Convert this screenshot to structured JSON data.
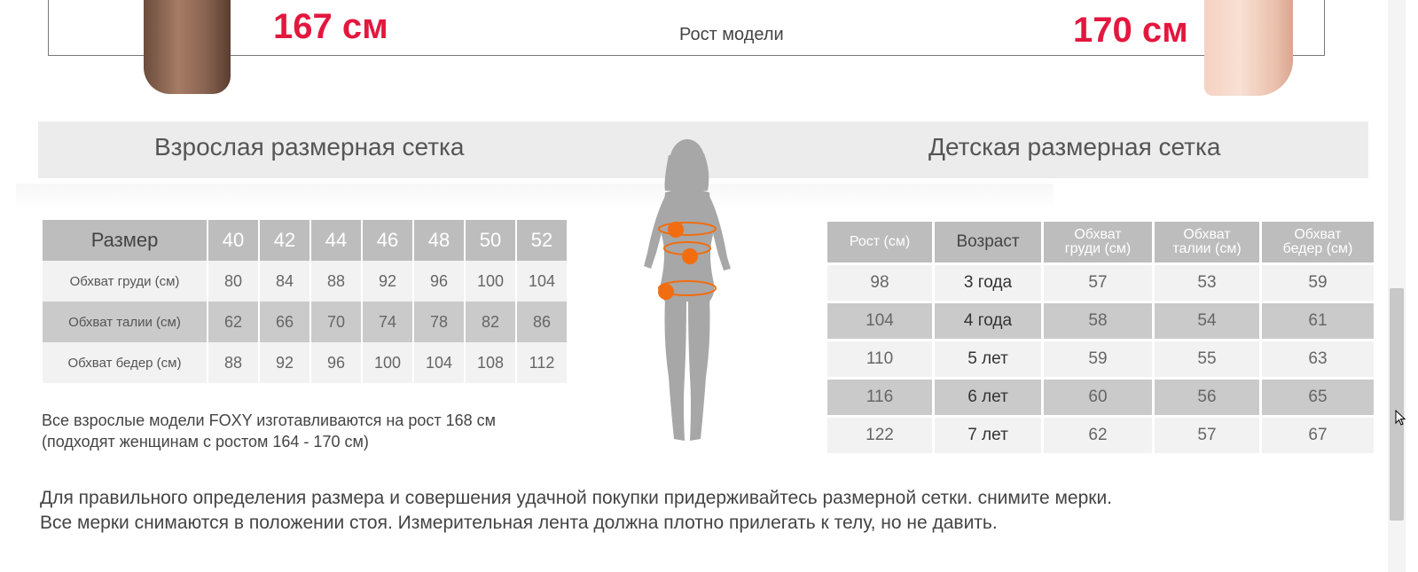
{
  "banner": {
    "height_left": "167 см",
    "model_height_label": "Рост модели",
    "height_right": "170 см"
  },
  "adult": {
    "title": "Взрослая размерная сетка",
    "header_label": "Размер",
    "sizes": [
      "40",
      "42",
      "44",
      "46",
      "48",
      "50",
      "52"
    ],
    "rows": [
      {
        "label": "Обхват груди (см)",
        "values": [
          "80",
          "84",
          "88",
          "92",
          "96",
          "100",
          "104"
        ]
      },
      {
        "label": "Обхват талии (см)",
        "values": [
          "62",
          "66",
          "70",
          "74",
          "78",
          "82",
          "86"
        ]
      },
      {
        "label": "Обхват бедер (см)",
        "values": [
          "88",
          "92",
          "96",
          "100",
          "104",
          "108",
          "112"
        ]
      }
    ],
    "note_line1": "Все взрослые модели FOXY изготавливаются на рост 168 см",
    "note_line2": "(подходят женщинам с ростом 164 - 170 см)"
  },
  "child": {
    "title": "Детская размерная сетка",
    "headers": {
      "height": "Рост (см)",
      "age": "Возраст",
      "chest_1": "Обхват",
      "chest_2": "груди (см)",
      "waist_1": "Обхват",
      "waist_2": "талии (см)",
      "hips_1": "Обхват",
      "hips_2": "бедер (см)"
    },
    "rows": [
      {
        "height": "98",
        "age": "3 года",
        "chest": "57",
        "waist": "53",
        "hips": "59"
      },
      {
        "height": "104",
        "age": "4 года",
        "chest": "58",
        "waist": "54",
        "hips": "61"
      },
      {
        "height": "110",
        "age": "5 лет",
        "chest": "59",
        "waist": "55",
        "hips": "63"
      },
      {
        "height": "116",
        "age": "6 лет",
        "chest": "60",
        "waist": "56",
        "hips": "65"
      },
      {
        "height": "122",
        "age": "7 лет",
        "chest": "62",
        "waist": "57",
        "hips": "67"
      }
    ]
  },
  "footer": {
    "line1": "Для правильного определения размера и совершения удачной покупки придерживайтесь размерной сетки. снимите мерки.",
    "line2": "Все мерки снимаются в положении стоя. Измерительная лента должна плотно прилегать к телу, но не давить."
  },
  "colors": {
    "accent_red": "#e4173e",
    "marker_orange": "#f26d0f",
    "header_gray": "#bdbdbd"
  },
  "icons": {
    "figure": "woman-silhouette-icon",
    "cursor": "mouse-pointer-icon"
  }
}
